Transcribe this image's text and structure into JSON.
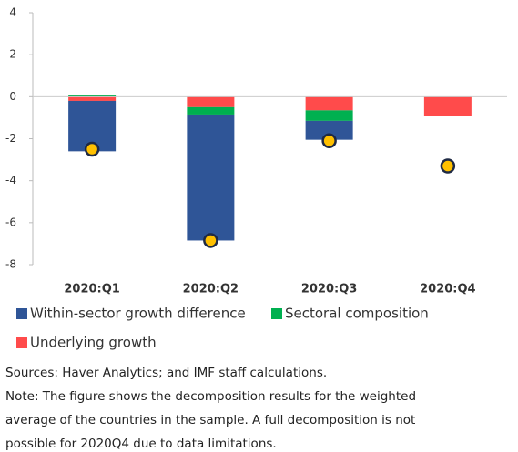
{
  "chart_data": {
    "type": "stacked-bar",
    "categories": [
      "2020:Q1",
      "2020:Q2",
      "2020:Q3",
      "2020:Q4"
    ],
    "series": [
      {
        "name": "Within-sector growth difference",
        "color": "#2f5597",
        "values": [
          -2.4,
          -6.0,
          -0.9,
          null
        ]
      },
      {
        "name": "Sectoral composition",
        "color": "#00b050",
        "values": [
          0.1,
          -0.35,
          -0.5,
          null
        ]
      },
      {
        "name": "Underlying growth",
        "color": "#ff4b4b",
        "values": [
          -0.2,
          -0.5,
          -0.65,
          -0.9
        ]
      }
    ],
    "points": {
      "color": "#ffc000",
      "values": [
        -2.5,
        -6.85,
        -2.1,
        -3.3
      ]
    },
    "ylim": [
      -8,
      4
    ],
    "yticks": [
      -8,
      -6,
      -4,
      -2,
      0,
      2,
      4
    ],
    "notes": [
      "Sources: Haver Analytics; and IMF staff calculations.",
      "Note: The figure shows the decomposition results for the weighted",
      "average of the countries in the sample. A full decomposition is not",
      "possible for 2020Q4 due to data limitations."
    ]
  }
}
